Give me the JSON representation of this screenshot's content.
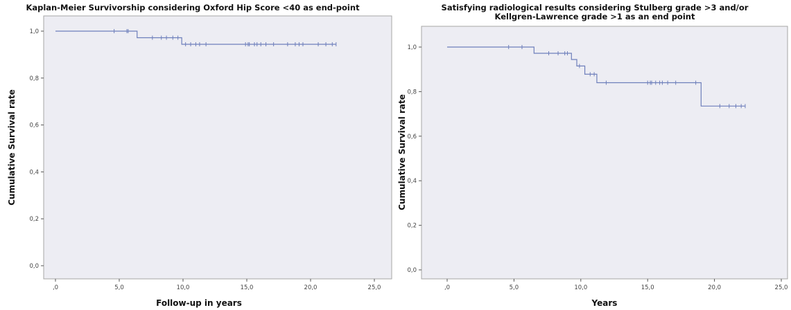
{
  "chart_data": [
    {
      "type": "line",
      "title": "Kaplan-Meier Survivorship considering Oxford Hip Score <40 as end-point",
      "title_line2": "",
      "xlabel": "Follow-up in years",
      "ylabel": "Cumulative Survival rate",
      "xlim": [
        0,
        25
      ],
      "ylim": [
        0,
        1
      ],
      "xticks": [
        0,
        5,
        10,
        15,
        20,
        25
      ],
      "yticks": [
        0,
        0.2,
        0.4,
        0.6,
        0.8,
        1.0
      ],
      "xtick_labels": [
        ",0",
        "5,0",
        "10,0",
        "15,0",
        "20,0",
        "25,0"
      ],
      "ytick_labels": [
        "0,0",
        "0,2",
        "0,4",
        "0,6",
        "0,8",
        "1,0"
      ],
      "plot_color": "#ededf3",
      "line_color": "#6e7fbb",
      "grid": false,
      "steps": [
        {
          "x": 0,
          "y": 1.0
        },
        {
          "x": 6.4,
          "y": 0.972
        },
        {
          "x": 9.9,
          "y": 0.944
        }
      ],
      "x_end": 22.0,
      "censored": [
        4.6,
        5.6,
        5.7,
        7.6,
        8.3,
        8.7,
        9.2,
        9.6,
        10.2,
        10.6,
        11.0,
        11.3,
        11.8,
        14.9,
        15.1,
        15.2,
        15.6,
        15.8,
        16.1,
        16.5,
        17.1,
        18.2,
        18.8,
        19.1,
        19.4,
        20.6,
        21.2,
        21.7,
        22.0
      ]
    },
    {
      "type": "line",
      "title": "Satisfying radiological results considering Stulberg grade >3 and/or",
      "title_line2": "Kellgren-Lawrence grade >1 as an end point",
      "xlabel": "Years",
      "ylabel": "Cumulative Survival rate",
      "xlim": [
        0,
        25
      ],
      "ylim": [
        0,
        1
      ],
      "xticks": [
        0,
        5,
        10,
        15,
        20,
        25
      ],
      "yticks": [
        0,
        0.2,
        0.4,
        0.6,
        0.8,
        1.0
      ],
      "xtick_labels": [
        ",0",
        "5,0",
        "10,0",
        "15,0",
        "20,0",
        "25,0"
      ],
      "ytick_labels": [
        "0,0",
        "0,2",
        "0,4",
        "0,6",
        "0,8",
        "1,0"
      ],
      "plot_color": "#ededf3",
      "line_color": "#6e7fbb",
      "grid": false,
      "steps": [
        {
          "x": 0,
          "y": 1.0
        },
        {
          "x": 6.5,
          "y": 0.972
        },
        {
          "x": 9.3,
          "y": 0.944
        },
        {
          "x": 9.7,
          "y": 0.915
        },
        {
          "x": 10.3,
          "y": 0.878
        },
        {
          "x": 11.2,
          "y": 0.84
        },
        {
          "x": 19.0,
          "y": 0.735
        }
      ],
      "x_end": 22.3,
      "censored": [
        4.6,
        5.6,
        7.6,
        8.3,
        8.8,
        9.0,
        9.9,
        10.7,
        11.0,
        11.9,
        15.0,
        15.2,
        15.3,
        15.6,
        15.9,
        16.1,
        16.5,
        17.1,
        18.6,
        20.4,
        21.1,
        21.6,
        22.0,
        22.3
      ]
    }
  ]
}
